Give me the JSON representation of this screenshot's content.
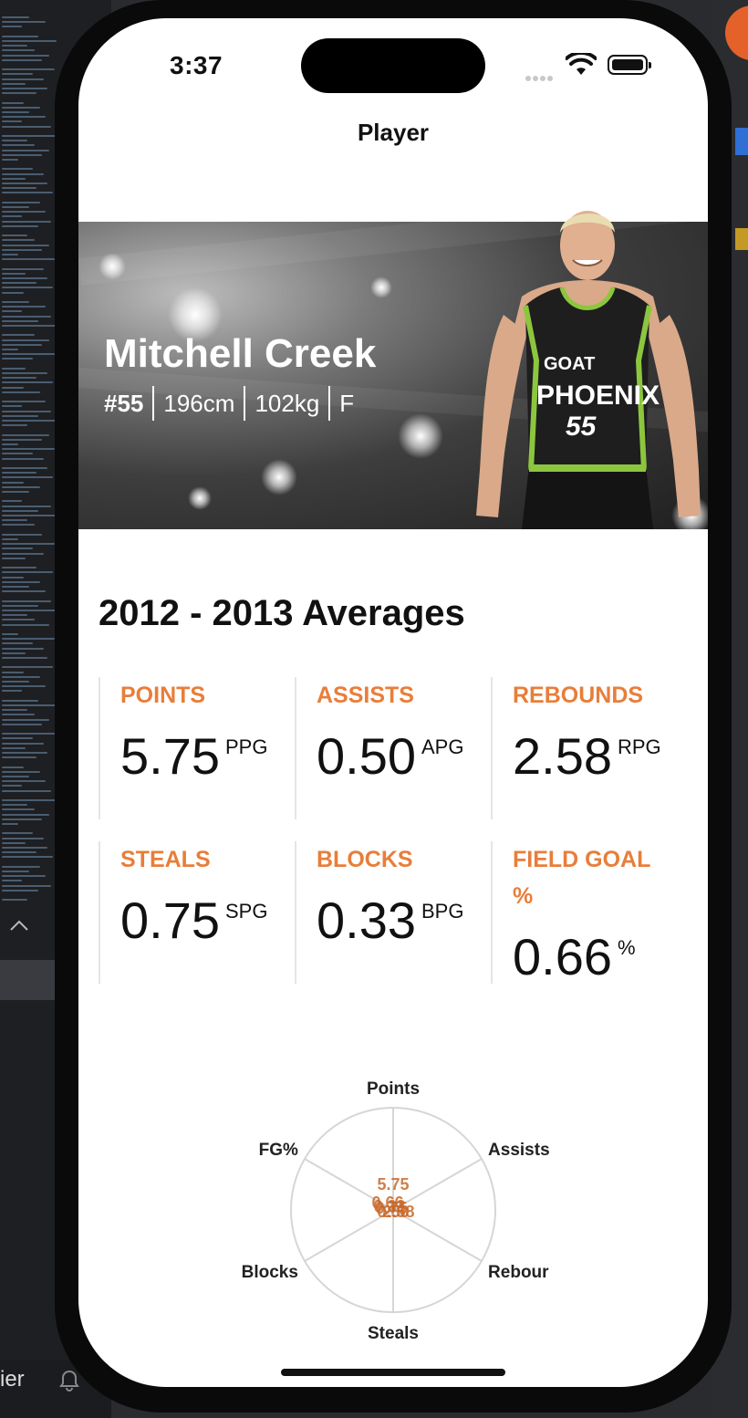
{
  "status": {
    "time": "3:37"
  },
  "nav": {
    "title": "Player"
  },
  "player": {
    "name": "Mitchell Creek",
    "number": "#55",
    "height": "196cm",
    "weight": "102kg",
    "position": "F",
    "jersey_text": {
      "sponsor": "GOAT",
      "team": "PHOENIX",
      "number": "55"
    }
  },
  "averages": {
    "title": "2012 - 2013 Averages",
    "stats": [
      {
        "label": "POINTS",
        "value": "5.75",
        "unit": "PPG"
      },
      {
        "label": "ASSISTS",
        "value": "0.50",
        "unit": "APG"
      },
      {
        "label": "REBOUNDS",
        "value": "2.58",
        "unit": "RPG"
      },
      {
        "label": "STEALS",
        "value": "0.75",
        "unit": "SPG"
      },
      {
        "label": "BLOCKS",
        "value": "0.33",
        "unit": "BPG"
      },
      {
        "label": "FIELD GOAL %",
        "value": "0.66",
        "unit": "%"
      }
    ]
  },
  "radar": {
    "axes": [
      "Points",
      "Assists",
      "Rebour",
      "Steals",
      "Blocks",
      "FG%"
    ],
    "values": [
      5.75,
      0.5,
      2.58,
      0.75,
      0.33,
      0.66
    ],
    "value_labels": [
      "5.75",
      "0.50",
      "2.58",
      "0.75",
      "0.33",
      "0.66"
    ]
  },
  "background": {
    "editor_label": "ier"
  },
  "colors": {
    "accent": "#e87e3a",
    "radar_fill": "#d26a2a"
  }
}
